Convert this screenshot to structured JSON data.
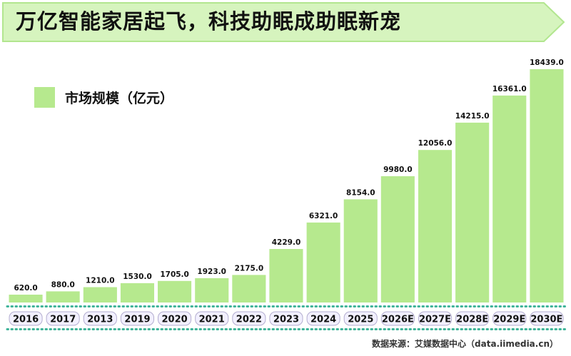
{
  "header": {
    "title": "万亿智能家居起飞，科技助眠成助眠新宠"
  },
  "colors": {
    "bar": "#b6e98e",
    "banner": "#d6f4be",
    "banner_border": "#b2e68f",
    "pill_fill": "#f2f0ff",
    "pill_border": "#b3adcf",
    "dots": "#3fb49a"
  },
  "chart_data": {
    "type": "bar",
    "title": "",
    "xlabel": "",
    "ylabel": "",
    "legend": "市场规模（亿元）",
    "categories": [
      "2016",
      "2017",
      "2013",
      "2019",
      "2020",
      "2021",
      "2022",
      "2023",
      "2024",
      "2025",
      "2026E",
      "2027E",
      "2028E",
      "2029E",
      "2030E"
    ],
    "values": [
      620.0,
      880.0,
      1210.0,
      1530.0,
      1705.0,
      1923.0,
      2175.0,
      4229.0,
      6321.0,
      8154.0,
      9980.0,
      12056.0,
      14215.0,
      16361.0,
      18439.0
    ],
    "value_labels": [
      "620.0",
      "880.0",
      "1210.0",
      "1530.0",
      "1705.0",
      "1923.0",
      "2175.0",
      "4229.0",
      "6321.0",
      "8154.0",
      "9980.0",
      "12056.0",
      "14215.0",
      "16361.0",
      "18439.0"
    ],
    "ylim": [
      0,
      18439
    ]
  },
  "footer": {
    "source": "数据来源：艾媒数据中心（data.iimedia.cn）"
  }
}
